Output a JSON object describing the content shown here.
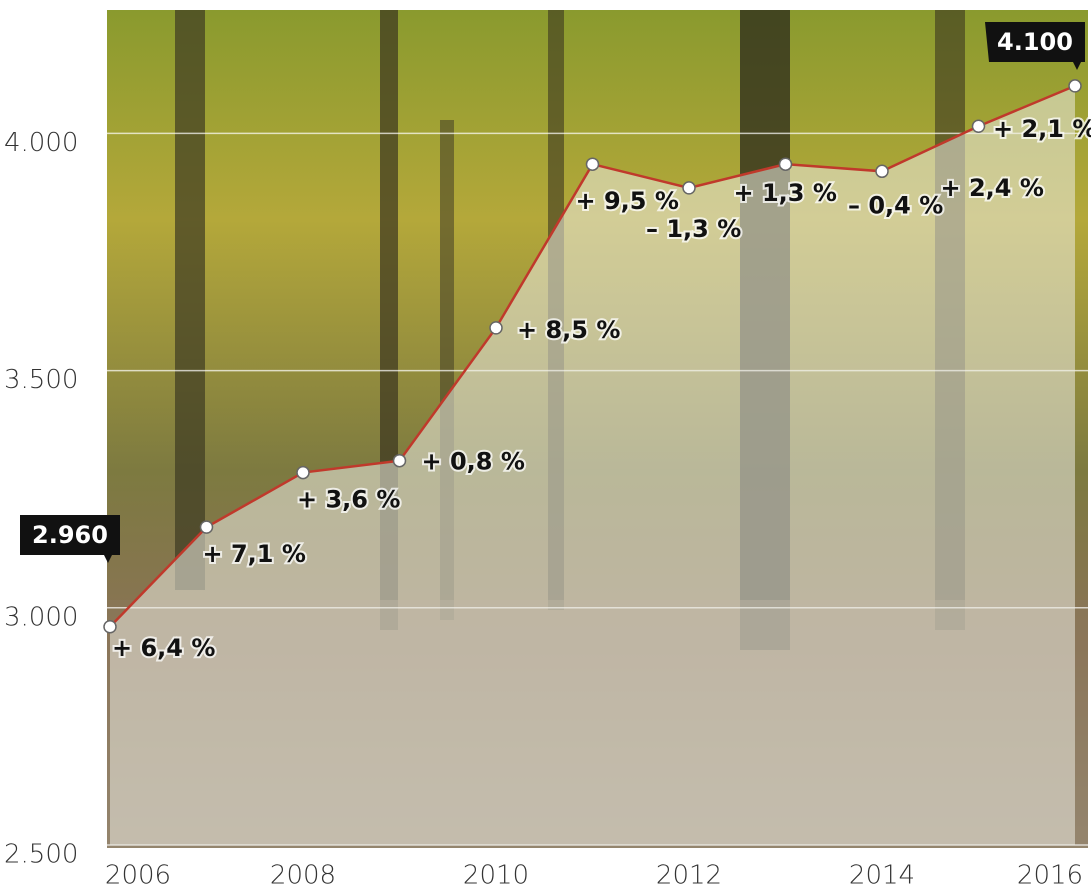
{
  "chart_data": {
    "type": "line",
    "x": [
      2006,
      2007,
      2008,
      2009,
      2010,
      2011,
      2012,
      2013,
      2014,
      2015,
      2016
    ],
    "values": [
      2960,
      3170,
      3285,
      3310,
      3590,
      3935,
      3885,
      3935,
      3920,
      4015,
      4100
    ],
    "value_labels": [
      "2.960",
      null,
      null,
      null,
      null,
      null,
      null,
      null,
      null,
      null,
      "4.100"
    ],
    "changes": [
      "+ 6,4 %",
      "+ 7,1 %",
      "+ 3,6 %",
      "+ 0,8 %",
      "+ 8,5 %",
      "+ 9,5 %",
      "– 1,3 %",
      "+ 1,3 %",
      "– 0,4 %",
      "+ 2,4 %",
      "+ 2,1 %"
    ],
    "color": "#c0392b",
    "xlim": [
      2006,
      2016
    ],
    "xticks": [
      2006,
      2008,
      2010,
      2012,
      2014,
      2016
    ],
    "ylim": [
      2500,
      4260
    ],
    "yticks": [
      {
        "value": 2500,
        "label": "2.500"
      },
      {
        "value": 3000,
        "label": "3.000"
      },
      {
        "value": 3500,
        "label": "3.500"
      },
      {
        "value": 4000,
        "label": "4.000"
      }
    ],
    "grid": true
  }
}
